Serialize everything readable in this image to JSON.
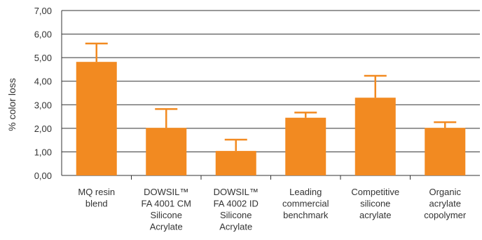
{
  "chart_data": {
    "type": "bar",
    "title": "",
    "xlabel": "",
    "ylabel": "% color loss",
    "ylim": [
      0,
      7
    ],
    "yticks": [
      "0,00",
      "1,00",
      "2,00",
      "3,00",
      "4,00",
      "5,00",
      "6,00",
      "7,00"
    ],
    "grid": true,
    "categories": [
      [
        "MQ resin",
        "blend"
      ],
      [
        "DOWSIL™",
        "FA 4001 CM",
        "Silicone",
        "Acrylate"
      ],
      [
        "DOWSIL™",
        "FA 4002 ID",
        "Silicone",
        "Acrylate"
      ],
      [
        "Leading",
        "commercial",
        "benchmark"
      ],
      [
        "Competitive",
        "silicone",
        "acrylate"
      ],
      [
        "Organic",
        "acrylate",
        "copolymer"
      ]
    ],
    "values": [
      4.82,
      2.02,
      1.04,
      2.45,
      3.3,
      2.02
    ],
    "errors": [
      0.78,
      0.8,
      0.48,
      0.22,
      0.93,
      0.24
    ],
    "colors": {
      "bar": "#F28A21",
      "error_bar": "#F28A21",
      "grid": "#333333",
      "text": "#333333"
    }
  }
}
